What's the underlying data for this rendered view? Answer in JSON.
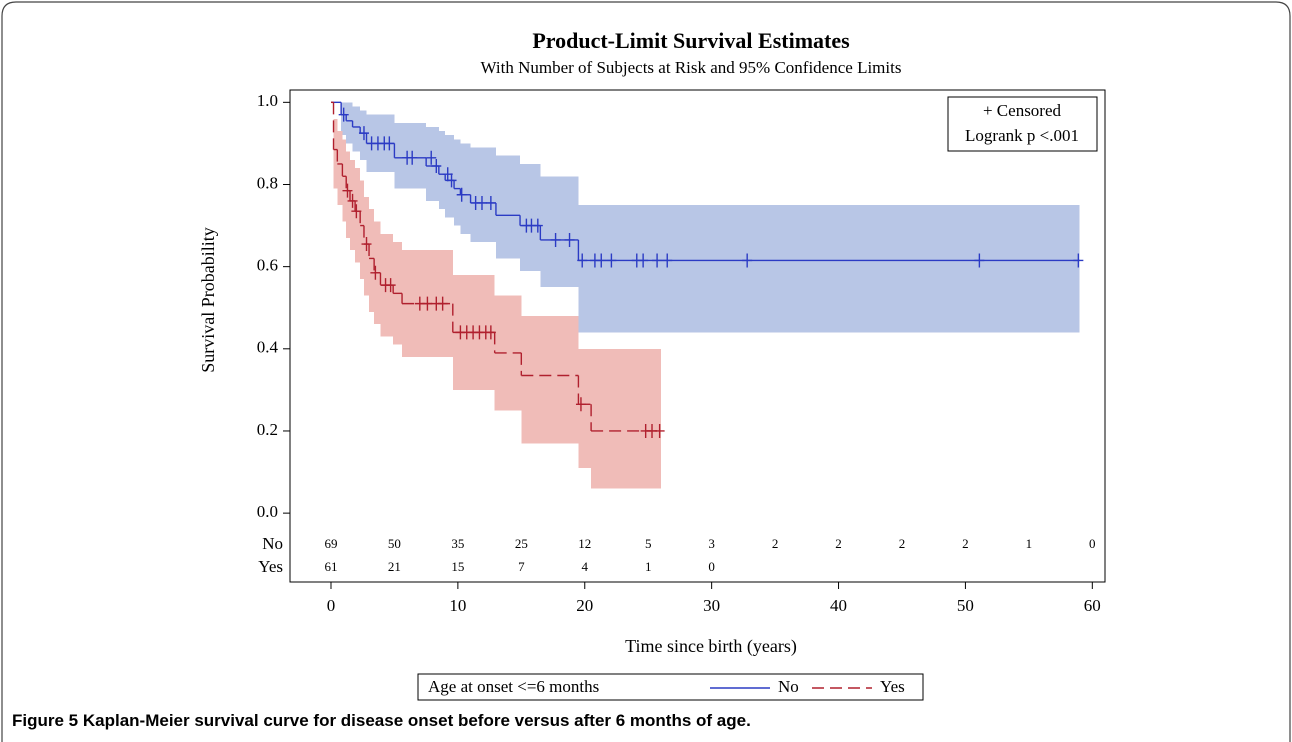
{
  "chart_data": {
    "type": "step",
    "title": "Product-Limit Survival Estimates",
    "subtitle": "With Number of Subjects at Risk and 95% Confidence Limits",
    "x_label": "Time since birth (years)",
    "y_label": "Survival Probability",
    "xlim": [
      -3.23,
      61.0
    ],
    "ylim": [
      -0.025,
      1.03
    ],
    "xticks": [
      0,
      10,
      20,
      30,
      40,
      50,
      60
    ],
    "yticks": [
      {
        "value": 0,
        "label": "0.0"
      },
      0.2,
      0.4,
      0.6,
      0.8,
      {
        "value": 1,
        "label": "1.0"
      }
    ],
    "inset_legend": [
      "+ Censored",
      "Logrank p <.001"
    ],
    "legend_title": "Age at onset <=6 months",
    "series": [
      {
        "name": "No",
        "color": "#2b3bc4",
        "band_color": "#b8c6e6",
        "dashed": false,
        "x": [
          0,
          0.8,
          1.2,
          1.7,
          2.3,
          2.8,
          5.0,
          7.5,
          8.5,
          9.0,
          9.7,
          10.2,
          11.0,
          13.0,
          14.9,
          16.5,
          19.5,
          59
        ],
        "values": [
          1.0,
          0.97,
          0.955,
          0.94,
          0.925,
          0.9,
          0.865,
          0.845,
          0.825,
          0.81,
          0.79,
          0.775,
          0.755,
          0.725,
          0.7,
          0.665,
          0.615,
          0.615
        ],
        "upper": [
          1.0,
          1.0,
          1.0,
          0.99,
          0.98,
          0.97,
          0.95,
          0.94,
          0.93,
          0.92,
          0.91,
          0.9,
          0.89,
          0.87,
          0.85,
          0.82,
          0.75,
          0.75
        ],
        "lower": [
          1.0,
          0.92,
          0.9,
          0.88,
          0.86,
          0.83,
          0.79,
          0.76,
          0.74,
          0.72,
          0.7,
          0.68,
          0.66,
          0.62,
          0.59,
          0.55,
          0.44,
          0.44
        ],
        "censored_x": [
          1.0,
          2.6,
          3.2,
          3.7,
          4.2,
          4.6,
          6.0,
          6.4,
          7.9,
          8.3,
          9.2,
          9.5,
          10.3,
          11.4,
          11.9,
          12.6,
          15.4,
          15.8,
          16.3,
          17.7,
          18.8,
          19.8,
          20.8,
          21.3,
          22.1,
          24.1,
          24.6,
          25.7,
          26.5,
          32.8,
          51.1,
          58.9
        ],
        "censored_values": [
          0.97,
          0.925,
          0.9,
          0.9,
          0.9,
          0.9,
          0.865,
          0.865,
          0.865,
          0.845,
          0.825,
          0.81,
          0.775,
          0.755,
          0.755,
          0.755,
          0.7,
          0.7,
          0.7,
          0.665,
          0.665,
          0.615,
          0.615,
          0.615,
          0.615,
          0.615,
          0.615,
          0.615,
          0.615,
          0.615,
          0.615,
          0.615
        ]
      },
      {
        "name": "Yes",
        "color": "#b0202e",
        "band_color": "#f0bcb8",
        "dashed": true,
        "x": [
          0,
          0.2,
          0.5,
          0.9,
          1.2,
          1.5,
          1.9,
          2.3,
          2.6,
          3.0,
          3.4,
          3.9,
          4.9,
          5.6,
          9.6,
          12.9,
          15.0,
          19.5,
          20.5,
          26.0
        ],
        "values": [
          1.0,
          0.885,
          0.85,
          0.82,
          0.785,
          0.76,
          0.735,
          0.7,
          0.655,
          0.62,
          0.585,
          0.555,
          0.535,
          0.51,
          0.44,
          0.39,
          0.335,
          0.265,
          0.2,
          0.2
        ],
        "upper": [
          1.0,
          0.96,
          0.93,
          0.91,
          0.88,
          0.86,
          0.84,
          0.81,
          0.77,
          0.74,
          0.71,
          0.68,
          0.66,
          0.64,
          0.58,
          0.53,
          0.48,
          0.4,
          0.4,
          0.4
        ],
        "lower": [
          1.0,
          0.79,
          0.75,
          0.71,
          0.67,
          0.64,
          0.61,
          0.57,
          0.53,
          0.49,
          0.46,
          0.43,
          0.41,
          0.38,
          0.3,
          0.25,
          0.17,
          0.11,
          0.06,
          0.06
        ],
        "censored_x": [
          1.3,
          1.7,
          2.0,
          2.8,
          3.5,
          4.3,
          4.7,
          7.0,
          7.6,
          8.3,
          8.8,
          10.2,
          10.7,
          11.2,
          11.7,
          12.2,
          12.6,
          19.7,
          24.8,
          25.3,
          25.9
        ],
        "censored_values": [
          0.785,
          0.76,
          0.735,
          0.655,
          0.585,
          0.555,
          0.555,
          0.51,
          0.51,
          0.51,
          0.51,
          0.44,
          0.44,
          0.44,
          0.44,
          0.44,
          0.44,
          0.265,
          0.2,
          0.2,
          0.2
        ]
      }
    ],
    "risk_table": {
      "times": [
        0,
        5,
        10,
        15,
        20,
        25,
        30,
        35,
        40,
        45,
        50,
        55,
        60
      ],
      "rows": [
        {
          "name": "No",
          "values": [
            69,
            50,
            35,
            25,
            12,
            5,
            3,
            2,
            2,
            2,
            2,
            1,
            0
          ]
        },
        {
          "name": "Yes",
          "values": [
            61,
            21,
            15,
            7,
            4,
            1,
            0
          ]
        }
      ]
    },
    "caption": {
      "label": "Figure 5",
      "text": "Kaplan-Meier survival curve for disease onset before versus after 6 months of age."
    }
  }
}
